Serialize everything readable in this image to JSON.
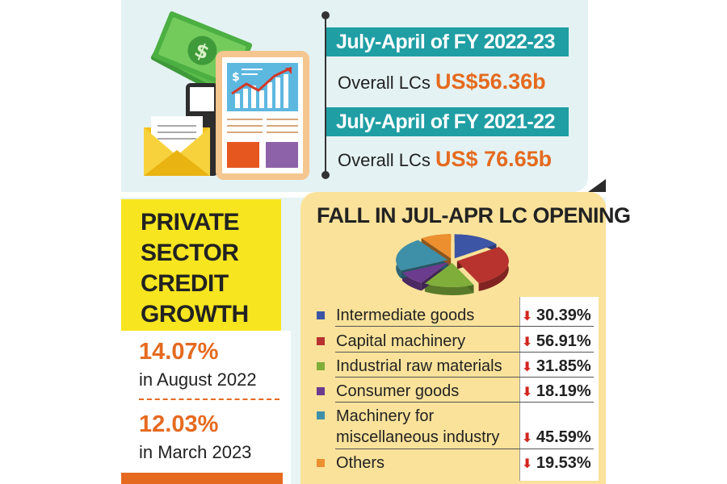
{
  "fy_blocks": [
    {
      "period": "July-April of FY 2022-23",
      "label": "Overall LCs",
      "amount": "US$56.36b"
    },
    {
      "period": "July-April of FY 2021-22",
      "label": "Overall LCs",
      "amount": "US$ 76.65b"
    }
  ],
  "private_credit": {
    "title_lines": [
      "PRIVATE",
      "SECTOR",
      "CREDIT",
      "GROWTH"
    ],
    "entries": [
      {
        "value": "14.07%",
        "date": "in August 2022"
      },
      {
        "value": "12.03%",
        "date": "in March 2023"
      }
    ]
  },
  "icons": [
    "money-icon",
    "envelope-icon",
    "report-chart-icon"
  ],
  "chart_data": {
    "type": "pie",
    "title": "FALL IN JUL-APR LC OPENING",
    "categories": [
      "Intermediate goods",
      "Capital machinery",
      "Industrial raw materials",
      "Consumer goods",
      "Machinery for miscellaneous industry",
      "Others"
    ],
    "values": [
      30.39,
      56.91,
      31.85,
      18.19,
      45.59,
      19.53
    ],
    "value_labels": [
      "30.39%",
      "56.91%",
      "31.85%",
      "18.19%",
      "45.59%",
      "19.53%"
    ],
    "colors": [
      "#3d55a5",
      "#b8322e",
      "#7fae3b",
      "#6b3c8e",
      "#3e8fa8",
      "#ec8f2e"
    ],
    "legend_position": "below",
    "trend_indicator": "down"
  },
  "colors": {
    "teal": "#1f9ea4",
    "orange": "#e56a1f",
    "yellow": "#f6e51f",
    "cream": "#fae29a",
    "down_arrow": "#d4251f"
  }
}
